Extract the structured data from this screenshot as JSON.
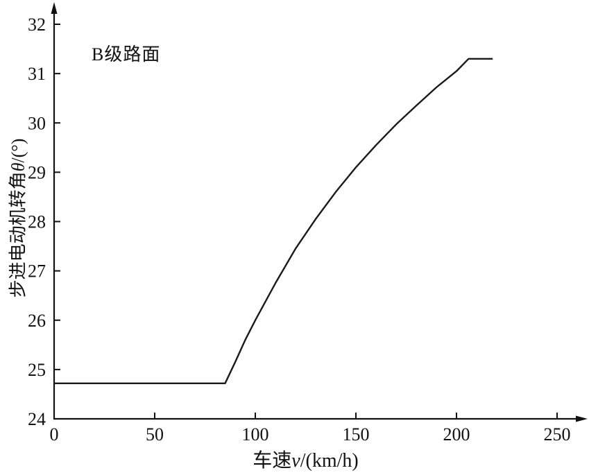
{
  "chart_data": {
    "type": "line",
    "title": "",
    "annotation": "B级路面",
    "xlabel_prefix": "车速",
    "xlabel_var": "v",
    "xlabel_suffix": "/(km/h)",
    "ylabel_prefix": "步进电动机转角",
    "ylabel_var": "θ",
    "ylabel_suffix": "/(°)",
    "xlim": [
      0,
      262
    ],
    "ylim": [
      24,
      32.4
    ],
    "x_ticks": [
      0,
      50,
      100,
      150,
      200,
      250
    ],
    "y_ticks": [
      24,
      25,
      26,
      27,
      28,
      29,
      30,
      31,
      32
    ],
    "grid": false,
    "legend": "none",
    "line_color": "#1a1a1a",
    "series": [
      {
        "name": "B级路面",
        "x": [
          0,
          85,
          90,
          95,
          100,
          110,
          120,
          130,
          140,
          150,
          160,
          170,
          180,
          190,
          200,
          206,
          218
        ],
        "y": [
          24.72,
          24.72,
          25.15,
          25.6,
          26.0,
          26.75,
          27.45,
          28.05,
          28.6,
          29.1,
          29.55,
          29.97,
          30.35,
          30.72,
          31.05,
          31.3,
          31.3
        ]
      }
    ]
  }
}
